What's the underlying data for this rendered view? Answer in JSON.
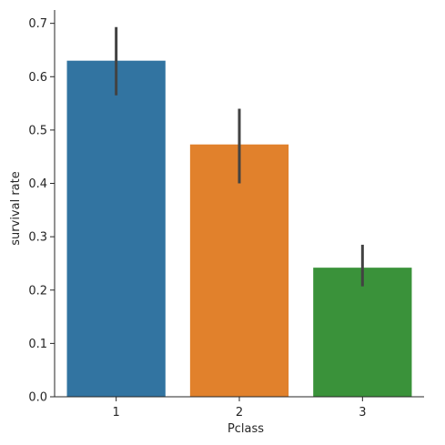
{
  "chart_data": {
    "type": "bar",
    "categories": [
      "1",
      "2",
      "3"
    ],
    "values": [
      0.63,
      0.473,
      0.242
    ],
    "ci": [
      [
        0.565,
        0.693
      ],
      [
        0.4,
        0.54
      ],
      [
        0.207,
        0.285
      ]
    ],
    "colors": [
      "#3274a1",
      "#e1812c",
      "#3a923a"
    ],
    "error_color": "#424242",
    "xlabel": "Pclass",
    "ylabel": "survival rate",
    "ylim": [
      0,
      0.725
    ],
    "yticks": [
      0.0,
      0.1,
      0.2,
      0.3,
      0.4,
      0.5,
      0.6,
      0.7
    ],
    "ytick_labels": [
      "0.0",
      "0.1",
      "0.2",
      "0.3",
      "0.4",
      "0.5",
      "0.6",
      "0.7"
    ],
    "grid": false
  }
}
